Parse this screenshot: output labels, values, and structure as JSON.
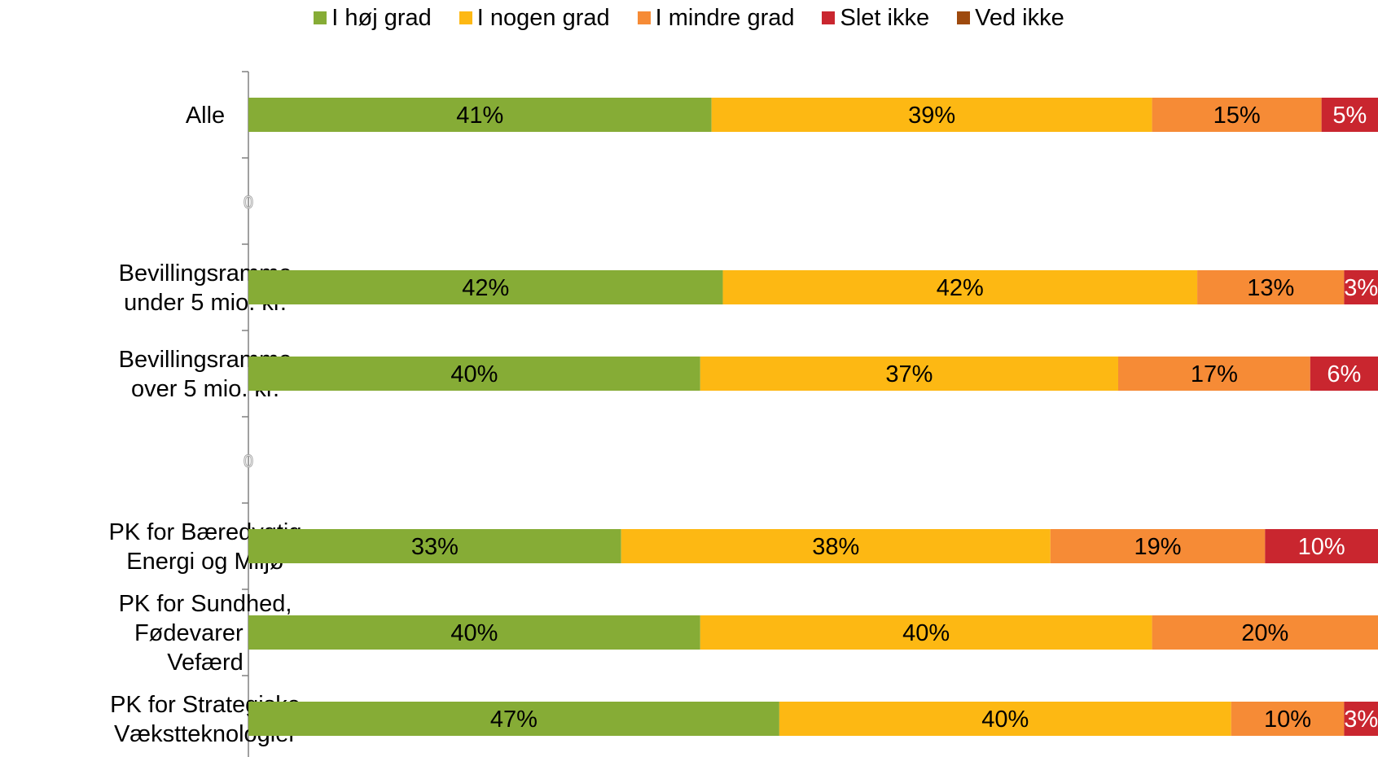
{
  "chart_data": {
    "type": "bar",
    "orientation": "horizontal",
    "stacked": true,
    "title": "",
    "xlabel": "",
    "ylabel": "",
    "xlim": [
      0,
      100
    ],
    "legend_position": "top",
    "grid": false,
    "categories": [
      [
        "Alle"
      ],
      [
        "0"
      ],
      [
        "Bevillingsramme",
        "under 5 mio. kr."
      ],
      [
        "Bevillingsramme",
        "over 5 mio. kr."
      ],
      [
        "0"
      ],
      [
        "PK for Bæredygtig",
        "Energi og Miljø"
      ],
      [
        "PK for Sundhed,",
        "Fødevarer og",
        "Vefærd"
      ],
      [
        "PK for Strategiske",
        "Vækstteknologier"
      ]
    ],
    "series": [
      {
        "name": "I høj grad",
        "color": "#86AC36",
        "values": [
          41,
          null,
          42,
          40,
          null,
          33,
          40,
          47
        ]
      },
      {
        "name": "I nogen grad",
        "color": "#FDB813",
        "values": [
          39,
          null,
          42,
          37,
          null,
          38,
          40,
          40
        ]
      },
      {
        "name": "I mindre grad",
        "color": "#F68B36",
        "values": [
          15,
          null,
          13,
          17,
          null,
          19,
          20,
          10
        ]
      },
      {
        "name": "Slet ikke",
        "color": "#C9262F",
        "values": [
          5,
          null,
          3,
          6,
          null,
          10,
          0,
          3
        ]
      },
      {
        "name": "Ved ikke",
        "color": "#9E4A0E",
        "values": [
          0,
          null,
          0,
          0,
          null,
          0,
          0,
          0
        ]
      }
    ],
    "data_labels": [
      [
        "41%",
        "39%",
        "15%",
        "5%",
        ""
      ],
      [
        "",
        "",
        "",
        "",
        ""
      ],
      [
        "42%",
        "42%",
        "13%",
        "3%",
        ""
      ],
      [
        "40%",
        "37%",
        "17%",
        "6%",
        ""
      ],
      [
        "",
        "",
        "",
        "",
        ""
      ],
      [
        "33%",
        "38%",
        "19%",
        "10%",
        ""
      ],
      [
        "40%",
        "40%",
        "20%",
        "",
        ""
      ],
      [
        "47%",
        "40%",
        "10%",
        "3%",
        ""
      ]
    ],
    "label_colors": [
      "#000000",
      "#000000",
      "#000000",
      "#ffffff",
      "#ffffff"
    ]
  }
}
